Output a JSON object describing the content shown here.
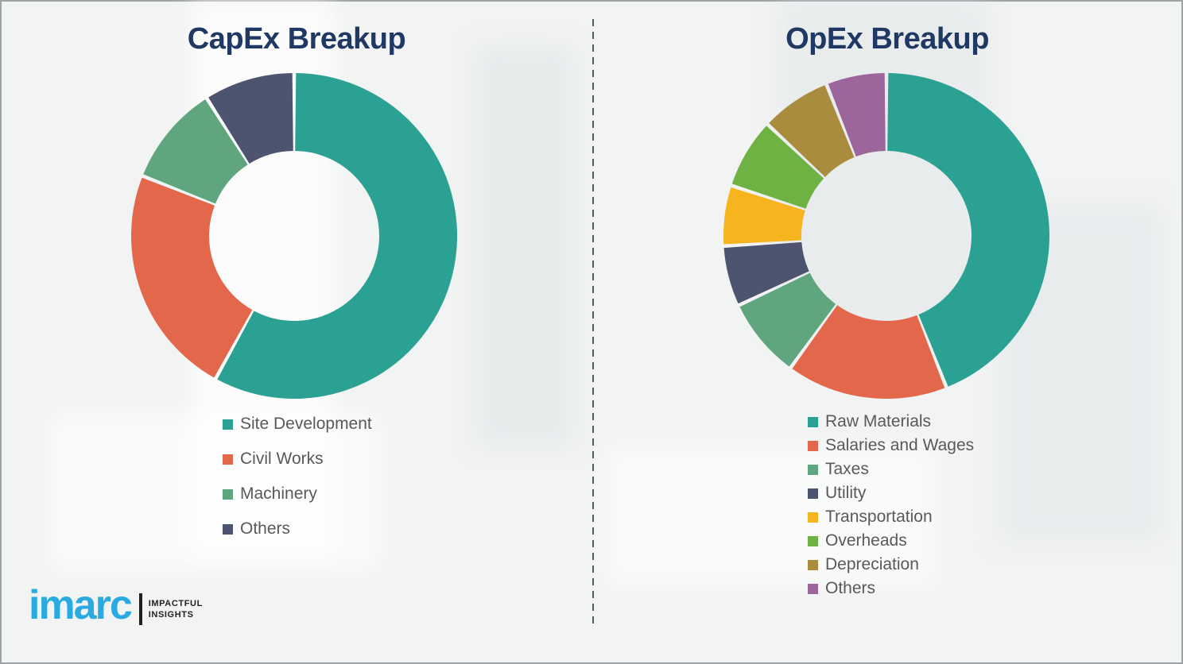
{
  "chart_data": [
    {
      "type": "pie",
      "subtype": "donut",
      "title": "CapEx Breakup",
      "labels": [
        "Site Development",
        "Civil Works",
        "Machinery",
        "Others"
      ],
      "values": [
        58,
        23,
        10,
        9
      ],
      "values_note": "percent, estimated from arc angles (no data labels shown)",
      "colors": [
        "#2AA193",
        "#E2674B",
        "#5FA57E",
        "#4C546F"
      ],
      "start_angle_deg": 0,
      "direction": "clockwise",
      "donut_hole_ratio": 0.76,
      "legend_position": "below"
    },
    {
      "type": "pie",
      "subtype": "donut",
      "title": "OpEx Breakup",
      "labels": [
        "Raw Materials",
        "Salaries and Wages",
        "Taxes",
        "Utility",
        "Transportation",
        "Overheads",
        "Depreciation",
        "Others"
      ],
      "values": [
        44,
        16,
        8,
        6,
        6,
        7,
        7,
        6
      ],
      "values_note": "percent, estimated from arc angles (no data labels shown)",
      "colors": [
        "#2AA193",
        "#E2674B",
        "#5FA57E",
        "#4C546F",
        "#F6B41F",
        "#6FB244",
        "#AA8C3E",
        "#9C659C"
      ],
      "start_angle_deg": 0,
      "direction": "clockwise",
      "donut_hole_ratio": 0.76,
      "legend_position": "below"
    }
  ],
  "branding": {
    "logo_text": "imarc",
    "tagline_line1": "IMPACTFUL",
    "tagline_line2": "INSIGHTS",
    "logo_color": "#29ABE2"
  },
  "styles": {
    "title_color": "#1F3864",
    "legend_text_color": "#595959",
    "divider_color": "#555A5E",
    "background_color": "#F2F3F3"
  }
}
